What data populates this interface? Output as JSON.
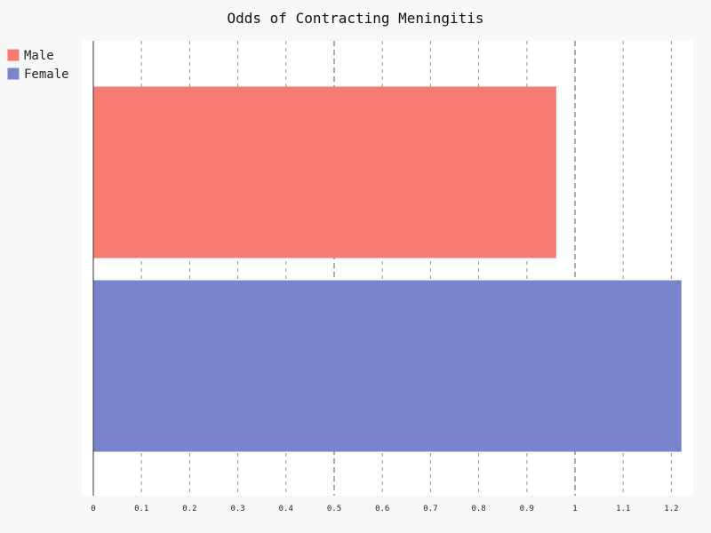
{
  "chart_data": {
    "type": "bar",
    "orientation": "horizontal",
    "title": "Odds of Contracting Meningitis",
    "xlabel": "",
    "ylabel": "",
    "xlim": [
      0,
      1.22
    ],
    "ticks": [
      "0",
      "0.1",
      "0.2",
      "0.3",
      "0.4",
      "0.5",
      "0.6",
      "0.7",
      "0.8",
      "0.9",
      "1",
      "1.1",
      "1.2"
    ],
    "tick_values": [
      0,
      0.1,
      0.2,
      0.3,
      0.4,
      0.5,
      0.6,
      0.7,
      0.8,
      0.9,
      1,
      1.1,
      1.2
    ],
    "major_ticks": [
      0.5,
      1
    ],
    "grid": true,
    "legend": "top-left",
    "series": [
      {
        "name": "Male",
        "value": 0.96,
        "color": "#f77b72"
      },
      {
        "name": "Female",
        "value": 1.22,
        "color": "#7884cd"
      }
    ]
  }
}
